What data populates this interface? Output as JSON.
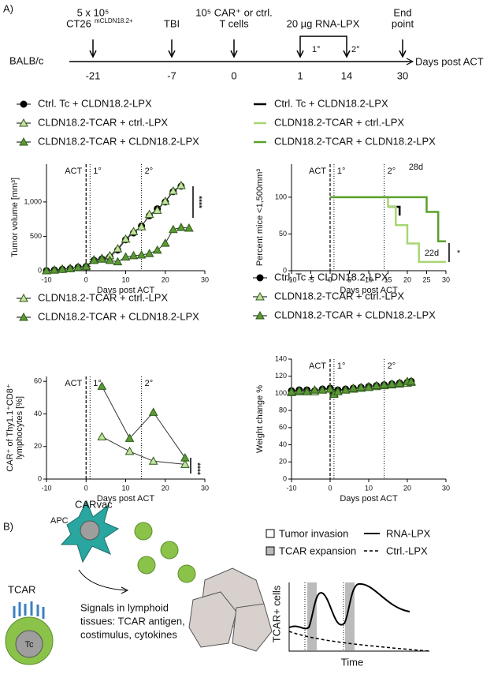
{
  "panel_a": {
    "label": "A)",
    "strain": "BALB/c",
    "axis_label": "Days post ACT",
    "events": [
      {
        "lines": [
          "5 x 10⁵",
          "CT26"
        ],
        "sup": "mCLDN18.2+"
      },
      {
        "lines": [
          "TBI"
        ]
      },
      {
        "lines": [
          "10⁵ CAR⁺ or ctrl.",
          "T cells"
        ]
      },
      {
        "lines": [
          "20 µg RNA-LPX"
        ]
      },
      {
        "lines": [
          "End",
          "point"
        ]
      }
    ],
    "days": [
      "-21",
      "-7",
      "0",
      "1",
      "14",
      "30"
    ],
    "doses": [
      "1°",
      "2°"
    ]
  },
  "chart_data": [
    {
      "type": "line",
      "y_label": "Tumor volume [mm³]",
      "x_label": "Days post ACT",
      "xlim": [
        -10,
        30
      ],
      "xticks": [
        -10,
        0,
        10,
        20,
        30
      ],
      "ylim": [
        0,
        1550
      ],
      "yticks": [
        0,
        500,
        {
          "value": 1000,
          "label": "1,000"
        }
      ],
      "vlines": [
        {
          "x": 0,
          "label": "ACT",
          "style": "dashed"
        },
        {
          "x": 1,
          "label": "1°",
          "style": "dotted"
        },
        {
          "x": 14,
          "label": "2°",
          "style": "dotted"
        }
      ],
      "annotations": [
        "****"
      ],
      "series": [
        {
          "name": "Ctrl. Tc + CLDN18.2-LPX",
          "color": "#000000",
          "marker": "circle",
          "x": [
            -10,
            -8,
            -6,
            -4,
            -2,
            0,
            2,
            4,
            6,
            8,
            10,
            12,
            14,
            16,
            18,
            20,
            22,
            24
          ],
          "values": [
            0,
            10,
            20,
            30,
            50,
            60,
            150,
            170,
            200,
            300,
            450,
            550,
            650,
            800,
            900,
            1000,
            1150,
            1230
          ]
        },
        {
          "name": "CLDN18.2-TCAR + ctrl.-LPX",
          "color": "#c5e3a0",
          "marker": "triangle",
          "x": [
            -10,
            -8,
            -6,
            -4,
            -2,
            0,
            2,
            4,
            6,
            8,
            10,
            12,
            14,
            16,
            18,
            20,
            22,
            24
          ],
          "values": [
            0,
            10,
            25,
            35,
            50,
            70,
            160,
            180,
            220,
            320,
            460,
            570,
            640,
            820,
            880,
            1010,
            1160,
            1240
          ]
        },
        {
          "name": "CLDN18.2-TCAR + CLDN18.2-LPX",
          "color": "#5a9a35",
          "marker": "triangle",
          "x": [
            -10,
            -8,
            -6,
            -4,
            -2,
            0,
            2,
            4,
            6,
            8,
            10,
            12,
            14,
            16,
            18,
            20,
            22,
            24,
            26
          ],
          "values": [
            0,
            10,
            20,
            30,
            50,
            60,
            150,
            170,
            150,
            130,
            200,
            220,
            230,
            250,
            300,
            400,
            600,
            630,
            620
          ]
        }
      ]
    },
    {
      "type": "step",
      "y_label": "Percent mice <1,500mm³",
      "x_label": "Days post ACT",
      "xlim": [
        -10,
        30
      ],
      "xticks": [
        -10,
        -5,
        0,
        5,
        10,
        15,
        20,
        25,
        30
      ],
      "ylim": [
        0,
        145
      ],
      "yticks": [
        0,
        50,
        100
      ],
      "vlines": [
        {
          "x": 0,
          "label": "ACT",
          "style": "dashed"
        },
        {
          "x": 1,
          "label": "1°",
          "style": "dotted"
        },
        {
          "x": 14,
          "label": "2°",
          "style": "dotted"
        }
      ],
      "annotations": [
        "28d",
        "22d",
        "*"
      ],
      "series": [
        {
          "name": "Ctrl. Tc + CLDN18.2-LPX",
          "color": "#000000",
          "x": [
            15,
            18
          ],
          "values": [
            87,
            75
          ]
        },
        {
          "name": "CLDN18.2-TCAR + ctrl.-LPX",
          "color": "#a8d672",
          "x": [
            0,
            15,
            17,
            20,
            23,
            30
          ],
          "values": [
            100,
            87,
            62,
            37,
            12,
            12
          ]
        },
        {
          "name": "CLDN18.2-TCAR + CLDN18.2-LPX",
          "color": "#5aa02c",
          "x": [
            0,
            25,
            28,
            30
          ],
          "values": [
            100,
            80,
            40,
            40
          ]
        }
      ]
    },
    {
      "type": "line",
      "y_label": [
        "CAR⁺ of Thy1.1⁺CD8⁺",
        "lymphocytes [%]"
      ],
      "x_label": "Days post ACT",
      "xlim": [
        -10,
        30
      ],
      "xticks": [
        -10,
        0,
        10,
        20,
        30
      ],
      "ylim": [
        0,
        63
      ],
      "yticks": [
        0,
        20,
        40,
        60
      ],
      "vlines": [
        {
          "x": 0,
          "label": "ACT",
          "style": "dashed"
        },
        {
          "x": 1,
          "label": "1°",
          "style": "dotted"
        },
        {
          "x": 14,
          "label": "2°",
          "style": "dotted"
        }
      ],
      "annotations": [
        "****"
      ],
      "series": [
        {
          "name": "CLDN18.2-TCAR + ctrl.-LPX",
          "color": "#c5e3a0",
          "marker": "triangle",
          "x": [
            4,
            11,
            17,
            25
          ],
          "values": [
            26,
            17,
            11,
            9
          ]
        },
        {
          "name": "CLDN18.2-TCAR + CLDN18.2-LPX",
          "color": "#5a9a35",
          "marker": "triangle",
          "x": [
            4,
            11,
            17,
            25
          ],
          "values": [
            57,
            25,
            41,
            13
          ]
        }
      ]
    },
    {
      "type": "line",
      "y_label": "Weight change %",
      "x_label": "Days post ACT",
      "xlim": [
        -10,
        30
      ],
      "xticks": [
        -10,
        0,
        10,
        20,
        30
      ],
      "ylim": [
        0,
        140
      ],
      "yticks": [
        0,
        20,
        40,
        60,
        80,
        100,
        120,
        140
      ],
      "vlines": [
        {
          "x": 0,
          "label": "ACT",
          "style": "dashed"
        },
        {
          "x": 1,
          "label": "1°",
          "style": "dotted"
        },
        {
          "x": 14,
          "label": "2°",
          "style": "dotted"
        }
      ],
      "annotations": [],
      "series": [
        {
          "name": "Ctrl. Tc + CLDN18.2-LPX",
          "color": "#000000",
          "marker": "circle",
          "x": [
            -10,
            -8,
            -6,
            -4,
            -2,
            0,
            1,
            2,
            4,
            6,
            8,
            10,
            12,
            14,
            16,
            18,
            20,
            21
          ],
          "values": [
            103,
            104,
            104,
            103,
            105,
            106,
            101,
            104,
            105,
            106,
            107,
            108,
            109,
            110,
            111,
            112,
            113,
            114
          ]
        },
        {
          "name": "CLDN18.2-TCAR + ctrl.-LPX",
          "color": "#c5e3a0",
          "marker": "triangle",
          "x": [
            -10,
            -8,
            -6,
            -4,
            -2,
            0,
            1,
            2,
            4,
            6,
            8,
            10,
            12,
            14,
            16,
            18,
            20,
            21
          ],
          "values": [
            101,
            102,
            103,
            102,
            104,
            105,
            100,
            103,
            104,
            105,
            106,
            108,
            108,
            109,
            110,
            111,
            112,
            113
          ]
        },
        {
          "name": "CLDN18.2-TCAR + CLDN18.2-LPX",
          "color": "#5a9a35",
          "marker": "triangle",
          "x": [
            -10,
            -8,
            -6,
            -4,
            -2,
            0,
            1,
            2,
            4,
            6,
            8,
            10,
            12,
            14,
            16,
            18,
            20,
            21
          ],
          "values": [
            102,
            103,
            102,
            104,
            104,
            105,
            99,
            102,
            104,
            106,
            107,
            107,
            109,
            110,
            111,
            112,
            114,
            114
          ]
        }
      ]
    }
  ],
  "panel_b": {
    "label": "B)",
    "tcar": "TCAR",
    "tc": "Tc",
    "carvac": "CARvac",
    "apc": "APC",
    "signals": [
      "Signals in lymphoid",
      "tissues: TCAR antigen,",
      "costimulus, cytokines"
    ],
    "legend": [
      "Tumor invasion",
      "TCAR expansion",
      "RNA-LPX",
      "Ctrl.-LPX"
    ],
    "y_label": "TCAR+ cells",
    "x_label": "Time"
  }
}
